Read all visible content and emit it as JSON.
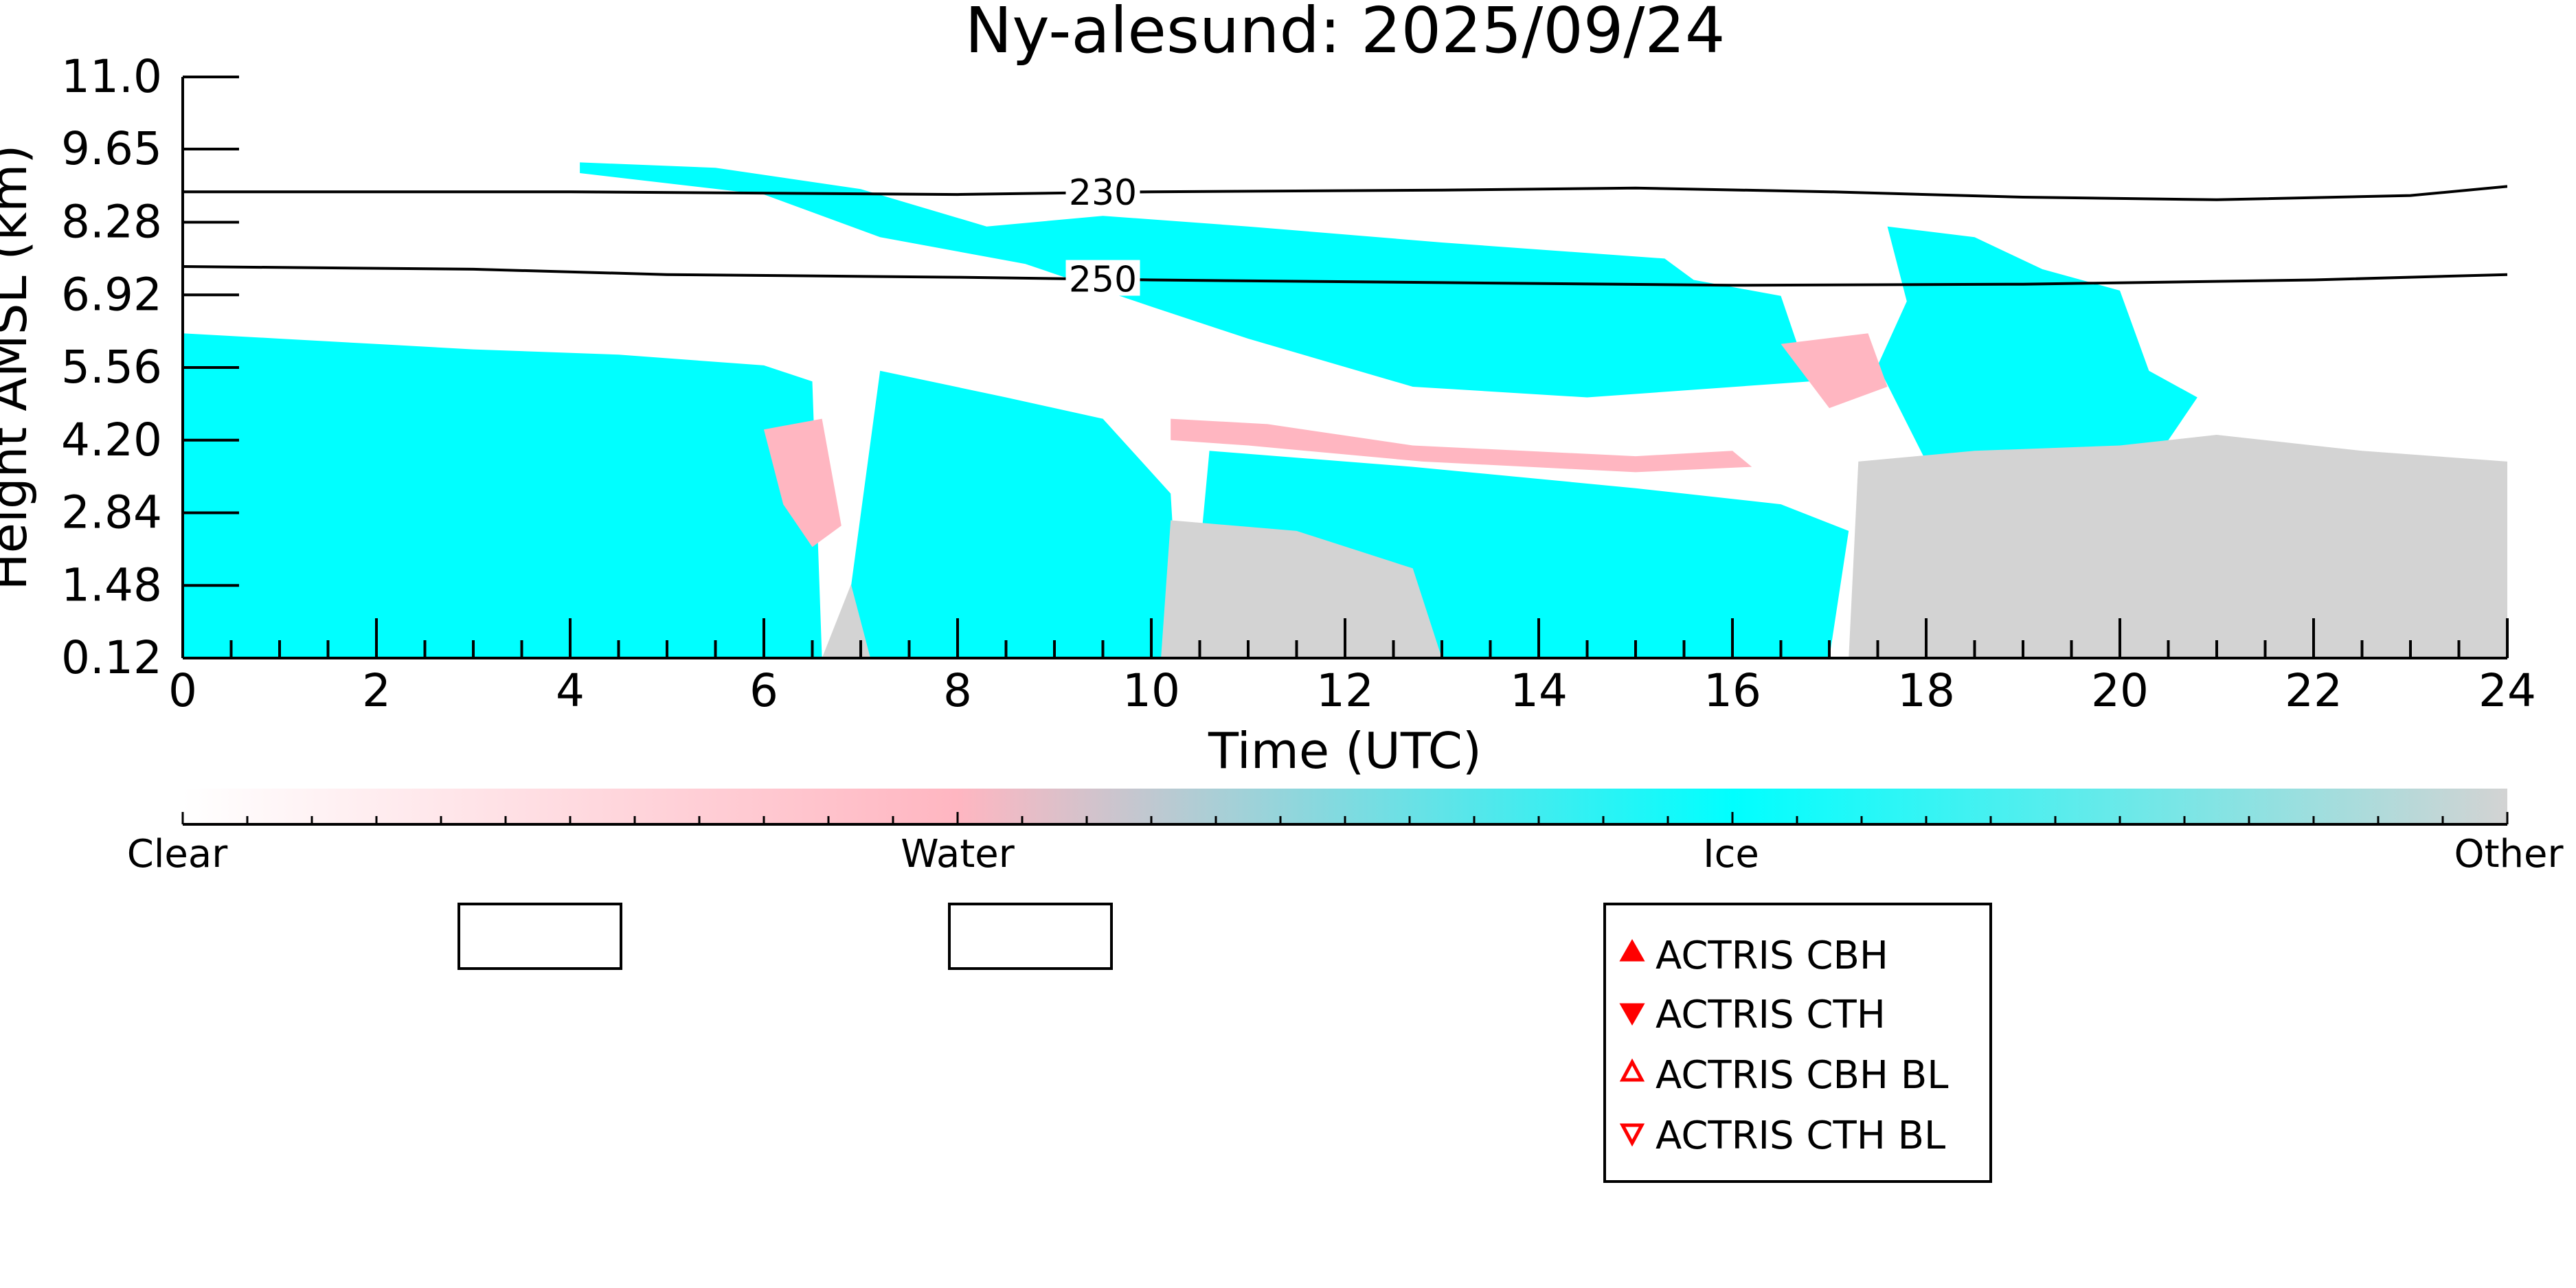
{
  "chart_data": {
    "type": "heatmap",
    "title": "Ny-alesund: 2025/09/24",
    "xlabel": "Time (UTC)",
    "ylabel": "Height AMSL (km)",
    "xlim": [
      0,
      24
    ],
    "ylim": [
      0.12,
      11.0
    ],
    "x_ticks": [
      0,
      2,
      4,
      6,
      8,
      10,
      12,
      14,
      16,
      18,
      20,
      22,
      24
    ],
    "x_tick_labels": [
      "0",
      "2",
      "4",
      "6",
      "8",
      "10",
      "12",
      "14",
      "16",
      "18",
      "20",
      "22",
      "24"
    ],
    "y_ticks": [
      0.12,
      1.48,
      2.84,
      4.2,
      5.56,
      6.92,
      8.28,
      9.65,
      11.0
    ],
    "y_tick_labels": [
      "0.12",
      "1.48",
      "2.84",
      "4.20",
      "5.56",
      "6.92",
      "8.28",
      "9.65",
      "11.0"
    ],
    "colorbar": {
      "labels": [
        "Clear",
        "Water",
        "Ice",
        "Other"
      ],
      "colors": {
        "Clear": "#ffffff",
        "Water": "#ffb6c1",
        "Ice": "#00ffff",
        "Other": "#d3d3d3"
      }
    },
    "contours": [
      {
        "label": "230",
        "label_x": 9.5,
        "points": [
          [
            0,
            8.85
          ],
          [
            4,
            8.85
          ],
          [
            8,
            8.8
          ],
          [
            10,
            8.85
          ],
          [
            13,
            8.88
          ],
          [
            15,
            8.92
          ],
          [
            17,
            8.85
          ],
          [
            19,
            8.75
          ],
          [
            21,
            8.7
          ],
          [
            23,
            8.78
          ],
          [
            24,
            8.95
          ]
        ]
      },
      {
        "label": "250",
        "label_x": 9.5,
        "points": [
          [
            0,
            7.45
          ],
          [
            3,
            7.4
          ],
          [
            5,
            7.3
          ],
          [
            8,
            7.25
          ],
          [
            10,
            7.2
          ],
          [
            13,
            7.15
          ],
          [
            16,
            7.1
          ],
          [
            19,
            7.12
          ],
          [
            22,
            7.2
          ],
          [
            24,
            7.3
          ]
        ]
      }
    ],
    "regions": [
      {
        "class": "Ice",
        "points": [
          [
            0,
            0.12
          ],
          [
            0,
            6.2
          ],
          [
            1,
            6.1
          ],
          [
            2,
            6.0
          ],
          [
            3,
            5.9
          ],
          [
            4.5,
            5.8
          ],
          [
            6,
            5.6
          ],
          [
            6.5,
            5.3
          ],
          [
            6.6,
            0.12
          ]
        ]
      },
      {
        "class": "Ice",
        "points": [
          [
            6.8,
            0.12
          ],
          [
            7.2,
            5.5
          ],
          [
            8.5,
            5.0
          ],
          [
            9.5,
            4.6
          ],
          [
            10.2,
            3.2
          ],
          [
            10.3,
            0.12
          ]
        ]
      },
      {
        "class": "Ice",
        "points": [
          [
            10.4,
            0.12
          ],
          [
            10.6,
            4.0
          ],
          [
            12.7,
            3.7
          ],
          [
            15,
            3.3
          ],
          [
            16.5,
            3.0
          ],
          [
            17.2,
            2.5
          ],
          [
            17,
            0.12
          ]
        ]
      },
      {
        "class": "Ice",
        "points": [
          [
            4.1,
            9.4
          ],
          [
            5.5,
            9.3
          ],
          [
            7,
            8.9
          ],
          [
            8.3,
            8.2
          ],
          [
            9.5,
            8.4
          ],
          [
            11,
            8.2
          ],
          [
            13,
            7.9
          ],
          [
            15.3,
            7.6
          ],
          [
            15.6,
            7.2
          ],
          [
            16.5,
            6.9
          ],
          [
            16.8,
            5.3
          ],
          [
            14.5,
            5.0
          ],
          [
            12.7,
            5.2
          ],
          [
            11,
            6.1
          ],
          [
            10,
            6.7
          ],
          [
            8.7,
            7.5
          ],
          [
            7.2,
            8.0
          ],
          [
            6,
            8.8
          ],
          [
            4.1,
            9.2
          ]
        ]
      },
      {
        "class": "Ice",
        "points": [
          [
            17.6,
            8.2
          ],
          [
            18.5,
            8.0
          ],
          [
            19.2,
            7.4
          ],
          [
            20,
            7.0
          ],
          [
            20.3,
            5.5
          ],
          [
            20.8,
            5.0
          ],
          [
            20.5,
            4.2
          ],
          [
            19.8,
            3.1
          ],
          [
            19.2,
            2.9
          ],
          [
            18.6,
            2.2
          ],
          [
            18.0,
            3.8
          ],
          [
            17.5,
            5.6
          ],
          [
            17.8,
            6.8
          ]
        ]
      },
      {
        "class": "Water",
        "points": [
          [
            10.2,
            4.6
          ],
          [
            11.2,
            4.5
          ],
          [
            12.7,
            4.1
          ],
          [
            15,
            3.9
          ],
          [
            16,
            4.0
          ],
          [
            16.2,
            3.7
          ],
          [
            15,
            3.6
          ],
          [
            12.8,
            3.8
          ],
          [
            11,
            4.1
          ],
          [
            10.2,
            4.2
          ]
        ]
      },
      {
        "class": "Water",
        "points": [
          [
            6.0,
            4.4
          ],
          [
            6.6,
            4.6
          ],
          [
            6.8,
            2.6
          ],
          [
            6.5,
            2.2
          ],
          [
            6.2,
            3.0
          ]
        ]
      },
      {
        "class": "Water",
        "points": [
          [
            16.5,
            6.0
          ],
          [
            17.4,
            6.2
          ],
          [
            17.6,
            5.2
          ],
          [
            17.0,
            4.8
          ]
        ]
      },
      {
        "class": "Other",
        "points": [
          [
            17.2,
            0.12
          ],
          [
            17.3,
            3.8
          ],
          [
            18.5,
            4.0
          ],
          [
            20,
            4.1
          ],
          [
            21,
            4.3
          ],
          [
            22.5,
            4.0
          ],
          [
            24,
            3.8
          ],
          [
            24,
            0.12
          ]
        ]
      },
      {
        "class": "Other",
        "points": [
          [
            10.1,
            0.12
          ],
          [
            10.2,
            2.7
          ],
          [
            11.5,
            2.5
          ],
          [
            12.7,
            1.8
          ],
          [
            13,
            0.12
          ]
        ]
      },
      {
        "class": "Other",
        "points": [
          [
            6.6,
            0.12
          ],
          [
            6.9,
            1.5
          ],
          [
            7.1,
            0.12
          ]
        ]
      }
    ],
    "legend": {
      "placement": "bottom-center",
      "entries": [
        {
          "label": "ACTRIS CBH",
          "marker": "triangle-up-filled",
          "color": "#ff0000"
        },
        {
          "label": "ACTRIS CTH",
          "marker": "triangle-down-filled",
          "color": "#ff0000"
        },
        {
          "label": "ACTRIS CBH BL",
          "marker": "triangle-up-open",
          "color": "#ff0000"
        },
        {
          "label": "ACTRIS CTH BL",
          "marker": "triangle-down-open",
          "color": "#ff0000"
        }
      ]
    },
    "grid": false
  }
}
